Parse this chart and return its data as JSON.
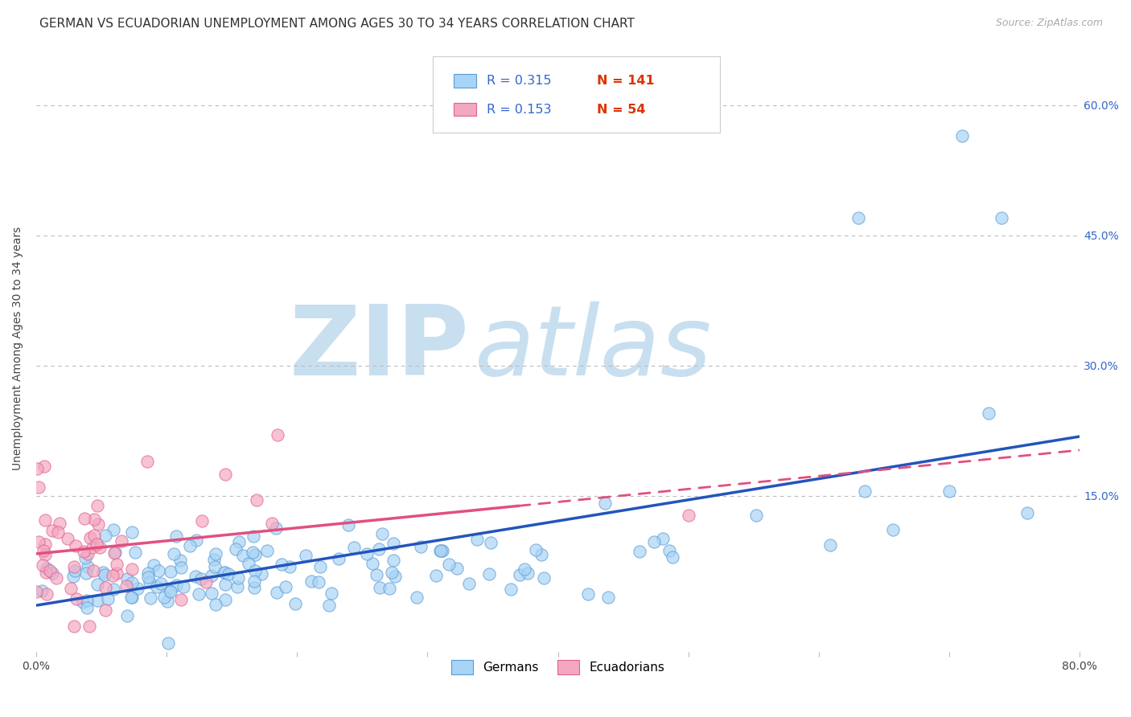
{
  "title": "GERMAN VS ECUADORIAN UNEMPLOYMENT AMONG AGES 30 TO 34 YEARS CORRELATION CHART",
  "source": "Source: ZipAtlas.com",
  "ylabel": "Unemployment Among Ages 30 to 34 years",
  "ytick_labels": [
    "60.0%",
    "45.0%",
    "30.0%",
    "15.0%"
  ],
  "ytick_vals": [
    0.6,
    0.45,
    0.3,
    0.15
  ],
  "xlim": [
    0.0,
    0.8
  ],
  "ylim": [
    -0.03,
    0.67
  ],
  "german_R": 0.315,
  "german_N": 141,
  "ecuadorian_R": 0.153,
  "ecuadorian_N": 54,
  "german_face_color": "#A8D4F5",
  "german_edge_color": "#5B9BD5",
  "ecuadorian_face_color": "#F4A8C0",
  "ecuadorian_edge_color": "#E06090",
  "german_line_color": "#2255BB",
  "ecuadorian_line_color": "#E05080",
  "watermark_zip": "ZIP",
  "watermark_atlas": "atlas",
  "watermark_color": "#C8DFF0",
  "legend_german_label": "Germans",
  "legend_ecuadorian_label": "Ecuadorians",
  "title_fontsize": 11,
  "label_fontsize": 10,
  "tick_fontsize": 10,
  "legend_r_color": "#3366CC",
  "legend_n_color": "#DD3300"
}
